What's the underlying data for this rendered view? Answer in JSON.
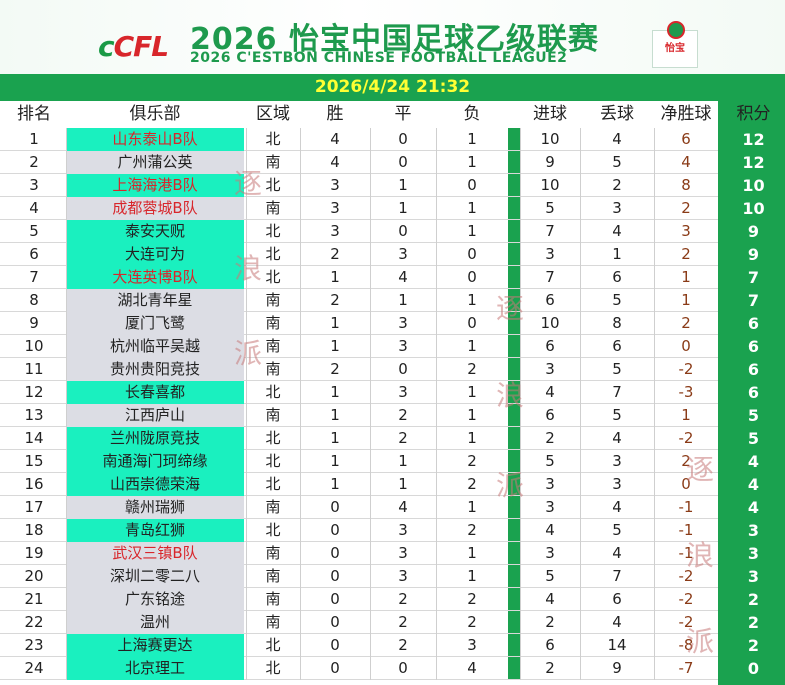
{
  "header": {
    "logo_text": "CFL",
    "title_cn": "2026 怡宝中国足球乙级联赛",
    "title_en": "2026 C'ESTBON CHINESE FOOTBALL LEAGUE2",
    "sponsor_badge": "怡宝"
  },
  "datetime": "2026/4/24 21:32",
  "columns": [
    "排名",
    "俱乐部",
    "区域",
    "胜",
    "平",
    "负",
    "进球",
    "丢球",
    "净胜球",
    "积分"
  ],
  "watermarks": [
    "逐",
    "浪",
    "派"
  ],
  "colors": {
    "accent_green": "#1aa24f",
    "team_highlight": "#1af0bf",
    "team_gray": "#dcdde4",
    "date_text": "#ffff33",
    "team_red": "#d8262b"
  },
  "rows": [
    {
      "rank": "1",
      "team": "山东泰山B队",
      "region": "北",
      "w": "4",
      "d": "0",
      "l": "1",
      "gf": "10",
      "ga": "4",
      "gd": "6",
      "pts": "12",
      "bg": "teal",
      "red": true
    },
    {
      "rank": "2",
      "team": "广州蒲公英",
      "region": "南",
      "w": "4",
      "d": "0",
      "l": "1",
      "gf": "9",
      "ga": "5",
      "gd": "4",
      "pts": "12",
      "bg": "gray",
      "red": false
    },
    {
      "rank": "3",
      "team": "上海海港B队",
      "region": "北",
      "w": "3",
      "d": "1",
      "l": "0",
      "gf": "10",
      "ga": "2",
      "gd": "8",
      "pts": "10",
      "bg": "teal",
      "red": true
    },
    {
      "rank": "4",
      "team": "成都蓉城B队",
      "region": "南",
      "w": "3",
      "d": "1",
      "l": "1",
      "gf": "5",
      "ga": "3",
      "gd": "2",
      "pts": "10",
      "bg": "gray",
      "red": true
    },
    {
      "rank": "5",
      "team": "泰安天贶",
      "region": "北",
      "w": "3",
      "d": "0",
      "l": "1",
      "gf": "7",
      "ga": "4",
      "gd": "3",
      "pts": "9",
      "bg": "teal",
      "red": false
    },
    {
      "rank": "6",
      "team": "大连可为",
      "region": "北",
      "w": "2",
      "d": "3",
      "l": "0",
      "gf": "3",
      "ga": "1",
      "gd": "2",
      "pts": "9",
      "bg": "teal",
      "red": false
    },
    {
      "rank": "7",
      "team": "大连英博B队",
      "region": "北",
      "w": "1",
      "d": "4",
      "l": "0",
      "gf": "7",
      "ga": "6",
      "gd": "1",
      "pts": "7",
      "bg": "teal",
      "red": true
    },
    {
      "rank": "8",
      "team": "湖北青年星",
      "region": "南",
      "w": "2",
      "d": "1",
      "l": "1",
      "gf": "6",
      "ga": "5",
      "gd": "1",
      "pts": "7",
      "bg": "gray",
      "red": false
    },
    {
      "rank": "9",
      "team": "厦门飞鹭",
      "region": "南",
      "w": "1",
      "d": "3",
      "l": "0",
      "gf": "10",
      "ga": "8",
      "gd": "2",
      "pts": "6",
      "bg": "gray",
      "red": false
    },
    {
      "rank": "10",
      "team": "杭州临平吴越",
      "region": "南",
      "w": "1",
      "d": "3",
      "l": "1",
      "gf": "6",
      "ga": "6",
      "gd": "0",
      "pts": "6",
      "bg": "gray",
      "red": false
    },
    {
      "rank": "11",
      "team": "贵州贵阳竞技",
      "region": "南",
      "w": "2",
      "d": "0",
      "l": "2",
      "gf": "3",
      "ga": "5",
      "gd": "-2",
      "pts": "6",
      "bg": "gray",
      "red": false
    },
    {
      "rank": "12",
      "team": "长春喜都",
      "region": "北",
      "w": "1",
      "d": "3",
      "l": "1",
      "gf": "4",
      "ga": "7",
      "gd": "-3",
      "pts": "6",
      "bg": "teal",
      "red": false
    },
    {
      "rank": "13",
      "team": "江西庐山",
      "region": "南",
      "w": "1",
      "d": "2",
      "l": "1",
      "gf": "6",
      "ga": "5",
      "gd": "1",
      "pts": "5",
      "bg": "gray",
      "red": false
    },
    {
      "rank": "14",
      "team": "兰州陇原竞技",
      "region": "北",
      "w": "1",
      "d": "2",
      "l": "1",
      "gf": "2",
      "ga": "4",
      "gd": "-2",
      "pts": "5",
      "bg": "teal",
      "red": false
    },
    {
      "rank": "15",
      "team": "南通海门珂缔缘",
      "region": "北",
      "w": "1",
      "d": "1",
      "l": "2",
      "gf": "5",
      "ga": "3",
      "gd": "2",
      "pts": "4",
      "bg": "teal",
      "red": false
    },
    {
      "rank": "16",
      "team": "山西崇德荣海",
      "region": "北",
      "w": "1",
      "d": "1",
      "l": "2",
      "gf": "3",
      "ga": "3",
      "gd": "0",
      "pts": "4",
      "bg": "teal",
      "red": false
    },
    {
      "rank": "17",
      "team": "赣州瑞狮",
      "region": "南",
      "w": "0",
      "d": "4",
      "l": "1",
      "gf": "3",
      "ga": "4",
      "gd": "-1",
      "pts": "4",
      "bg": "gray",
      "red": false
    },
    {
      "rank": "18",
      "team": "青岛红狮",
      "region": "北",
      "w": "0",
      "d": "3",
      "l": "2",
      "gf": "4",
      "ga": "5",
      "gd": "-1",
      "pts": "3",
      "bg": "teal",
      "red": false
    },
    {
      "rank": "19",
      "team": "武汉三镇B队",
      "region": "南",
      "w": "0",
      "d": "3",
      "l": "1",
      "gf": "3",
      "ga": "4",
      "gd": "-1",
      "pts": "3",
      "bg": "gray",
      "red": true
    },
    {
      "rank": "20",
      "team": "深圳二零二八",
      "region": "南",
      "w": "0",
      "d": "3",
      "l": "1",
      "gf": "5",
      "ga": "7",
      "gd": "-2",
      "pts": "3",
      "bg": "gray",
      "red": false
    },
    {
      "rank": "21",
      "team": "广东铭途",
      "region": "南",
      "w": "0",
      "d": "2",
      "l": "2",
      "gf": "4",
      "ga": "6",
      "gd": "-2",
      "pts": "2",
      "bg": "gray",
      "red": false
    },
    {
      "rank": "22",
      "team": "温州",
      "region": "南",
      "w": "0",
      "d": "2",
      "l": "2",
      "gf": "2",
      "ga": "4",
      "gd": "-2",
      "pts": "2",
      "bg": "gray",
      "red": false
    },
    {
      "rank": "23",
      "team": "上海赛更达",
      "region": "北",
      "w": "0",
      "d": "2",
      "l": "3",
      "gf": "6",
      "ga": "14",
      "gd": "-8",
      "pts": "2",
      "bg": "teal",
      "red": false
    },
    {
      "rank": "24",
      "team": "北京理工",
      "region": "北",
      "w": "0",
      "d": "0",
      "l": "4",
      "gf": "2",
      "ga": "9",
      "gd": "-7",
      "pts": "0",
      "bg": "teal",
      "red": false
    }
  ]
}
